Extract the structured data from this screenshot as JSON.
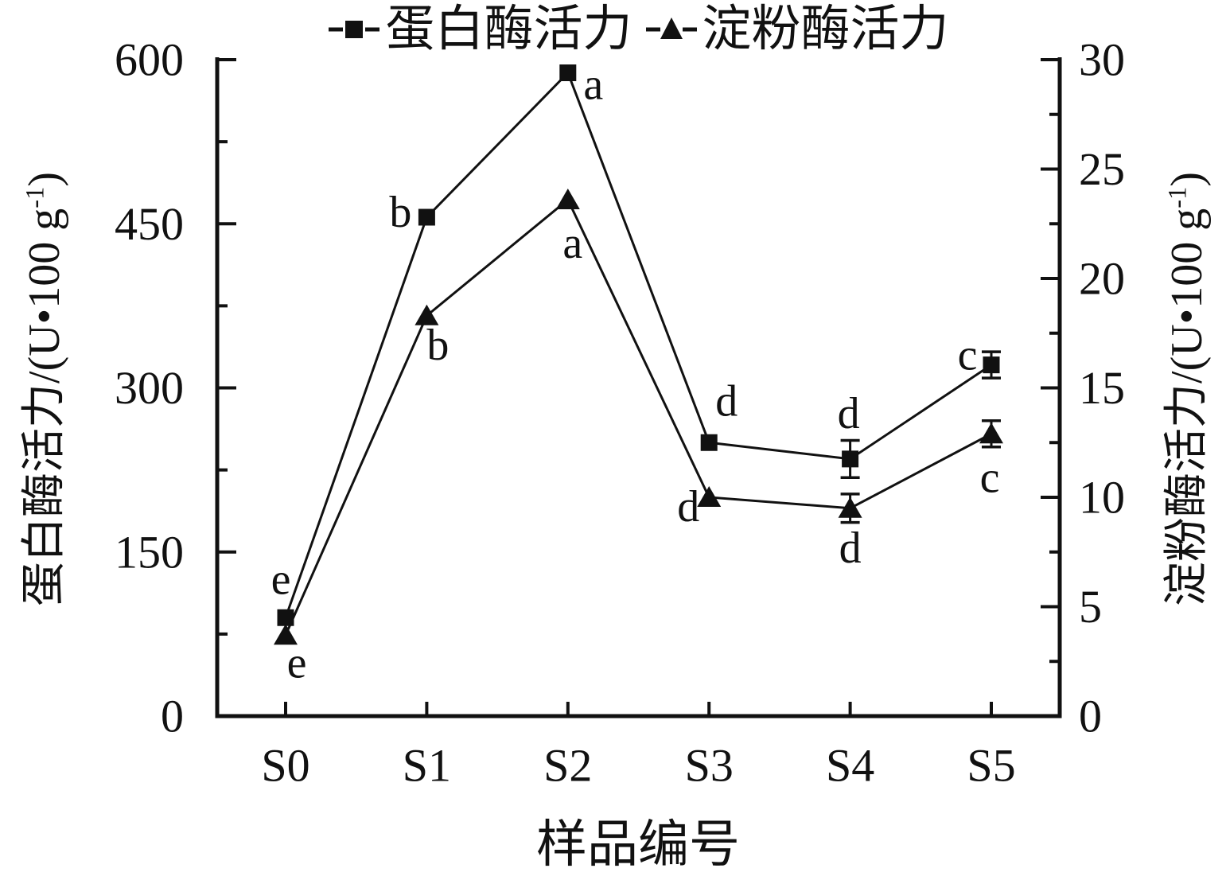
{
  "figure": {
    "legend": [
      {
        "label": "蛋白酶活力",
        "marker": "square"
      },
      {
        "label": "淀粉酶活力",
        "marker": "triangle"
      }
    ]
  },
  "chart_data": {
    "type": "line",
    "categories": [
      "S0",
      "S1",
      "S2",
      "S3",
      "S4",
      "S5"
    ],
    "xlabel": "样品编号",
    "left_axis": {
      "title": "蛋白酶活力/(U•100 g⁻¹)",
      "title_parts": {
        "prefix": "蛋白酶活力/(U•100 g",
        "sup": "-1",
        "suffix": ")"
      },
      "range": [
        0,
        600
      ],
      "major_ticks": [
        0,
        150,
        300,
        450,
        600
      ],
      "minor_ticks": [
        75,
        225,
        375,
        525
      ]
    },
    "right_axis": {
      "title": "淀粉酶活力/(U•100 g⁻¹)",
      "title_parts": {
        "prefix": "淀粉酶活力/(U•100 g",
        "sup": "-1",
        "suffix": ")"
      },
      "range": [
        0,
        30
      ],
      "major_ticks": [
        0,
        5,
        10,
        15,
        20,
        25,
        30
      ],
      "minor_ticks": [
        2.5,
        7.5,
        12.5,
        17.5,
        22.5,
        27.5
      ]
    },
    "series": [
      {
        "name": "蛋白酶活力",
        "axis": "left",
        "marker": "square",
        "values": [
          90,
          456,
          588,
          250,
          235,
          321
        ],
        "errors": [
          0,
          0,
          0,
          0,
          17,
          12
        ],
        "point_labels": [
          "e",
          "b",
          "a",
          "d",
          "d",
          "c"
        ]
      },
      {
        "name": "淀粉酶活力",
        "axis": "right",
        "marker": "triangle",
        "values": [
          3.7,
          18.3,
          23.6,
          10.0,
          9.5,
          12.9
        ],
        "errors": [
          0,
          0,
          0,
          0,
          0.65,
          0.6
        ],
        "point_labels": [
          "e",
          "b",
          "a",
          "d",
          "d",
          "c"
        ]
      }
    ],
    "layout_hints": {
      "legend_position": "top-center",
      "grid": false,
      "color": "#111111",
      "point_label_offsets": [
        [
          [
            -6,
            -48
          ],
          [
            -33,
            -6
          ],
          [
            32,
            15
          ],
          [
            22,
            -52
          ],
          [
            -2,
            -57
          ],
          [
            -30,
            -12
          ]
        ],
        [
          [
            14,
            35
          ],
          [
            14,
            37
          ],
          [
            6,
            55
          ],
          [
            -26,
            12
          ],
          [
            0,
            50
          ],
          [
            -2,
            55
          ]
        ]
      ]
    }
  }
}
